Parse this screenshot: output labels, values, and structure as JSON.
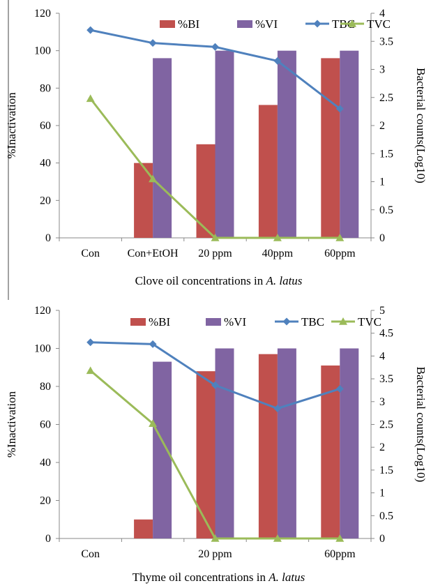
{
  "chart_data": [
    {
      "type": "bar",
      "categories": [
        "Con",
        "Con+EtOH",
        "20 ppm",
        "40ppm",
        "60ppm"
      ],
      "series": [
        {
          "name": "%BI",
          "type": "bar",
          "axis": "left",
          "color": "#C0504D",
          "values": [
            0,
            40,
            50,
            71,
            96
          ]
        },
        {
          "name": "%VI",
          "type": "bar",
          "axis": "left",
          "color": "#8064A2",
          "values": [
            0,
            96,
            100,
            100,
            100
          ]
        },
        {
          "name": "TBC",
          "type": "line",
          "axis": "right",
          "color": "#4F81BD",
          "marker": "diamond",
          "values": [
            3.7,
            3.47,
            3.4,
            3.15,
            2.3
          ]
        },
        {
          "name": "TVC",
          "type": "line",
          "axis": "right",
          "color": "#9BBB59",
          "marker": "triangle",
          "values": [
            2.48,
            1.05,
            0,
            0,
            0
          ]
        }
      ],
      "xlabel_prefix": "Clove oil concentrations in ",
      "xlabel_italic": "A. latus",
      "ylabel": "%Inactivation",
      "y2label": "Bacterial counts(Log10)",
      "ylim": [
        0,
        120
      ],
      "y_ticks": [
        "0",
        "20",
        "40",
        "60",
        "80",
        "100",
        "120"
      ],
      "y2lim": [
        0,
        4
      ],
      "y2_ticks": [
        "0",
        "0.5",
        "1",
        "1.5",
        "2",
        "2.5",
        "3",
        "3.5",
        "4"
      ],
      "legend_position": "top-right",
      "grid": false
    },
    {
      "type": "bar",
      "categories": [
        "Con",
        "",
        "20 ppm",
        "",
        "60ppm"
      ],
      "series": [
        {
          "name": "%BI",
          "type": "bar",
          "axis": "left",
          "color": "#C0504D",
          "values": [
            0,
            10,
            88,
            97,
            91
          ]
        },
        {
          "name": "%VI",
          "type": "bar",
          "axis": "left",
          "color": "#8064A2",
          "values": [
            0,
            93,
            100,
            100,
            100
          ]
        },
        {
          "name": "TBC",
          "type": "line",
          "axis": "right",
          "color": "#4F81BD",
          "marker": "diamond",
          "values": [
            4.3,
            4.26,
            3.36,
            2.85,
            3.28
          ]
        },
        {
          "name": "TVC",
          "type": "line",
          "axis": "right",
          "color": "#9BBB59",
          "marker": "triangle",
          "values": [
            3.68,
            2.52,
            0,
            0,
            0
          ]
        }
      ],
      "xlabel_prefix": "Thyme oil concentrations in ",
      "xlabel_italic": "A. latus",
      "ylabel": "%Inactivation",
      "y2label": "Bacterial counts(Log10)",
      "ylim": [
        0,
        120
      ],
      "y_ticks": [
        "0",
        "20",
        "40",
        "60",
        "80",
        "100",
        "120"
      ],
      "y2lim": [
        0,
        5
      ],
      "y2_ticks": [
        "0",
        "0.5",
        "1",
        "1.5",
        "2",
        "2.5",
        "3",
        "3.5",
        "4",
        "4.5",
        "5"
      ],
      "legend_position": "top-right",
      "grid": false
    }
  ]
}
